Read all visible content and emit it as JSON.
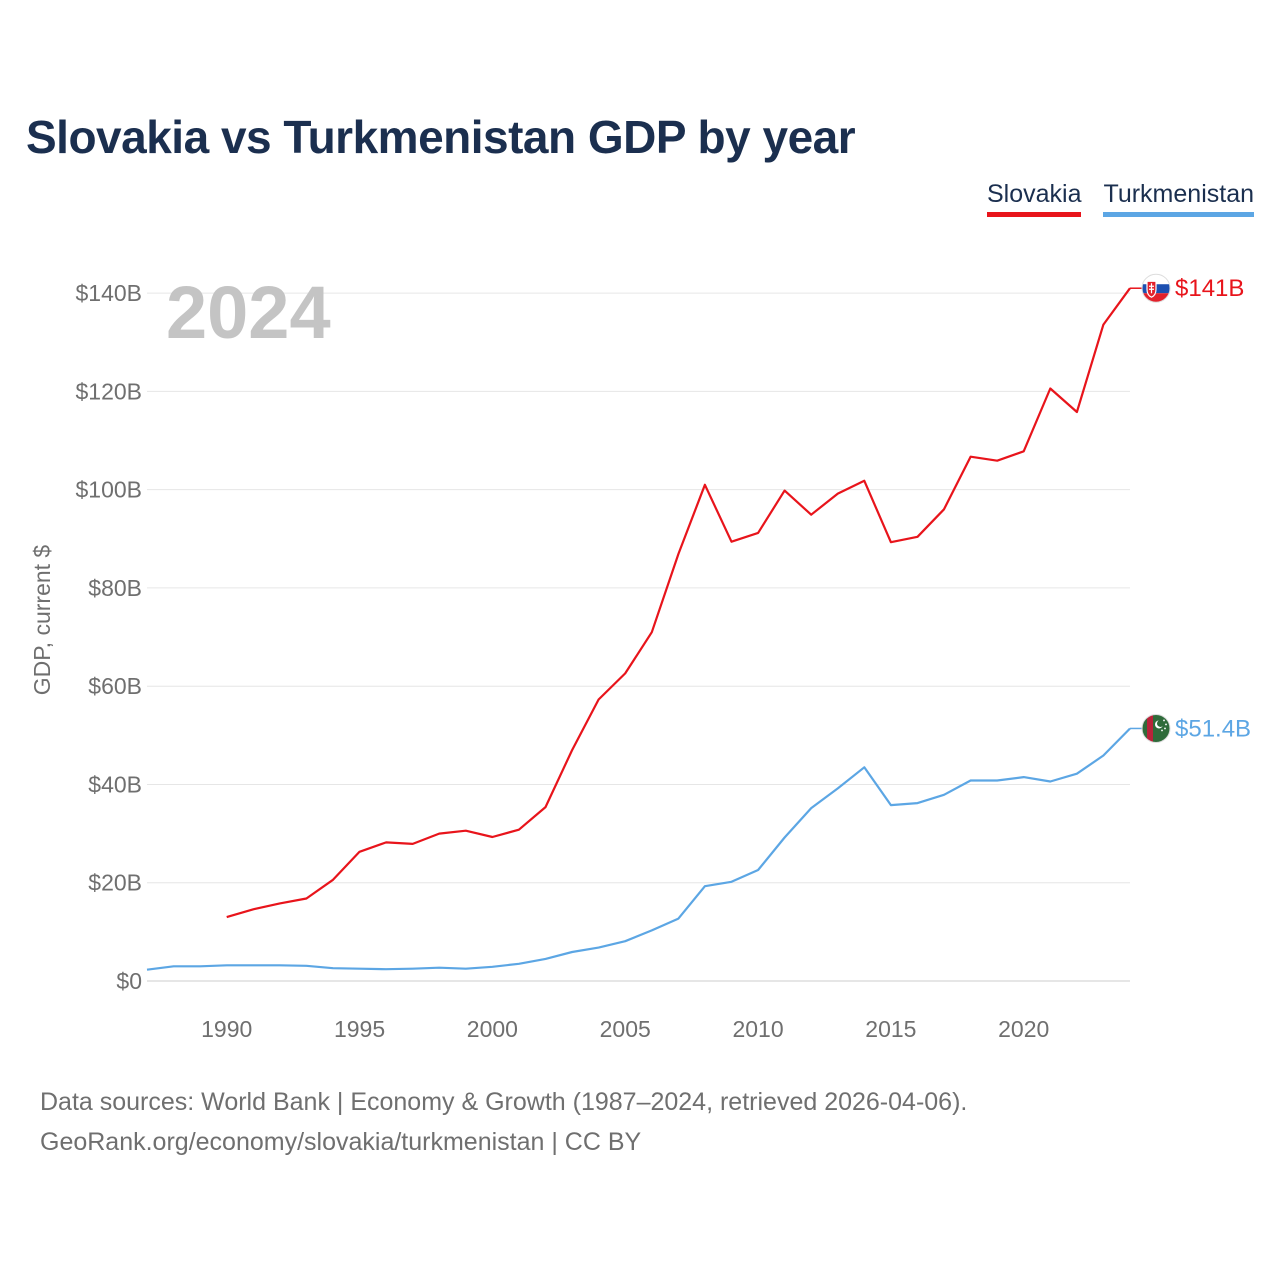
{
  "header": {
    "title": "Slovakia vs Turkmenistan GDP by year"
  },
  "legend": [
    {
      "label": "Slovakia",
      "color": "#e8141b"
    },
    {
      "label": "Turkmenistan",
      "color": "#5ca6e4"
    }
  ],
  "chart_data": {
    "type": "line",
    "title": "Slovakia vs Turkmenistan GDP by year",
    "xlabel": "",
    "ylabel": "GDP, current $",
    "year_watermark": "2024",
    "xlim": [
      1987,
      2024
    ],
    "ylim": [
      0,
      150
    ],
    "x_ticks": [
      1990,
      1995,
      2000,
      2005,
      2010,
      2015,
      2020
    ],
    "y_ticks": [
      {
        "value": 0,
        "label": "$0"
      },
      {
        "value": 20,
        "label": "$20B"
      },
      {
        "value": 40,
        "label": "$40B"
      },
      {
        "value": 60,
        "label": "$60B"
      },
      {
        "value": 80,
        "label": "$80B"
      },
      {
        "value": 100,
        "label": "$100B"
      },
      {
        "value": 120,
        "label": "$120B"
      },
      {
        "value": 140,
        "label": "$140B"
      }
    ],
    "grid": true,
    "series": [
      {
        "name": "Slovakia",
        "color": "#e8141b",
        "end_label": "$141B",
        "flag": "slovakia-flag-icon",
        "x": [
          1990,
          1991,
          1992,
          1993,
          1994,
          1995,
          1996,
          1997,
          1998,
          1999,
          2000,
          2001,
          2002,
          2003,
          2004,
          2005,
          2006,
          2007,
          2008,
          2009,
          2010,
          2011,
          2012,
          2013,
          2014,
          2015,
          2016,
          2017,
          2018,
          2019,
          2020,
          2021,
          2022,
          2023,
          2024
        ],
        "values": [
          13.0,
          14.6,
          15.8,
          16.8,
          20.6,
          26.3,
          28.2,
          27.9,
          30.0,
          30.6,
          29.3,
          30.8,
          35.4,
          47.0,
          57.3,
          62.6,
          71.0,
          86.9,
          101.0,
          89.4,
          91.2,
          99.8,
          94.9,
          99.2,
          101.8,
          89.3,
          90.4,
          96.0,
          106.7,
          105.9,
          107.8,
          120.6,
          115.8,
          133.6,
          141.0
        ]
      },
      {
        "name": "Turkmenistan",
        "color": "#5ca6e4",
        "end_label": "$51.4B",
        "flag": "turkmenistan-flag-icon",
        "x": [
          1987,
          1988,
          1989,
          1990,
          1991,
          1992,
          1993,
          1994,
          1995,
          1996,
          1997,
          1998,
          1999,
          2000,
          2001,
          2002,
          2003,
          2004,
          2005,
          2006,
          2007,
          2008,
          2009,
          2010,
          2011,
          2012,
          2013,
          2014,
          2015,
          2016,
          2017,
          2018,
          2019,
          2020,
          2021,
          2022,
          2023,
          2024
        ],
        "values": [
          2.3,
          3.0,
          3.0,
          3.2,
          3.2,
          3.2,
          3.1,
          2.6,
          2.5,
          2.4,
          2.5,
          2.7,
          2.5,
          2.9,
          3.5,
          4.5,
          5.9,
          6.8,
          8.1,
          10.3,
          12.7,
          19.3,
          20.2,
          22.6,
          29.2,
          35.2,
          39.2,
          43.5,
          35.8,
          36.2,
          37.9,
          40.8,
          40.8,
          41.5,
          40.6,
          42.2,
          45.9,
          51.4
        ]
      }
    ]
  },
  "footer": {
    "sources": "Data sources: World Bank | Economy & Growth (1987–2024, retrieved 2026-04-06).",
    "credit": "GeoRank.org/economy/slovakia/turkmenistan | CC BY"
  }
}
